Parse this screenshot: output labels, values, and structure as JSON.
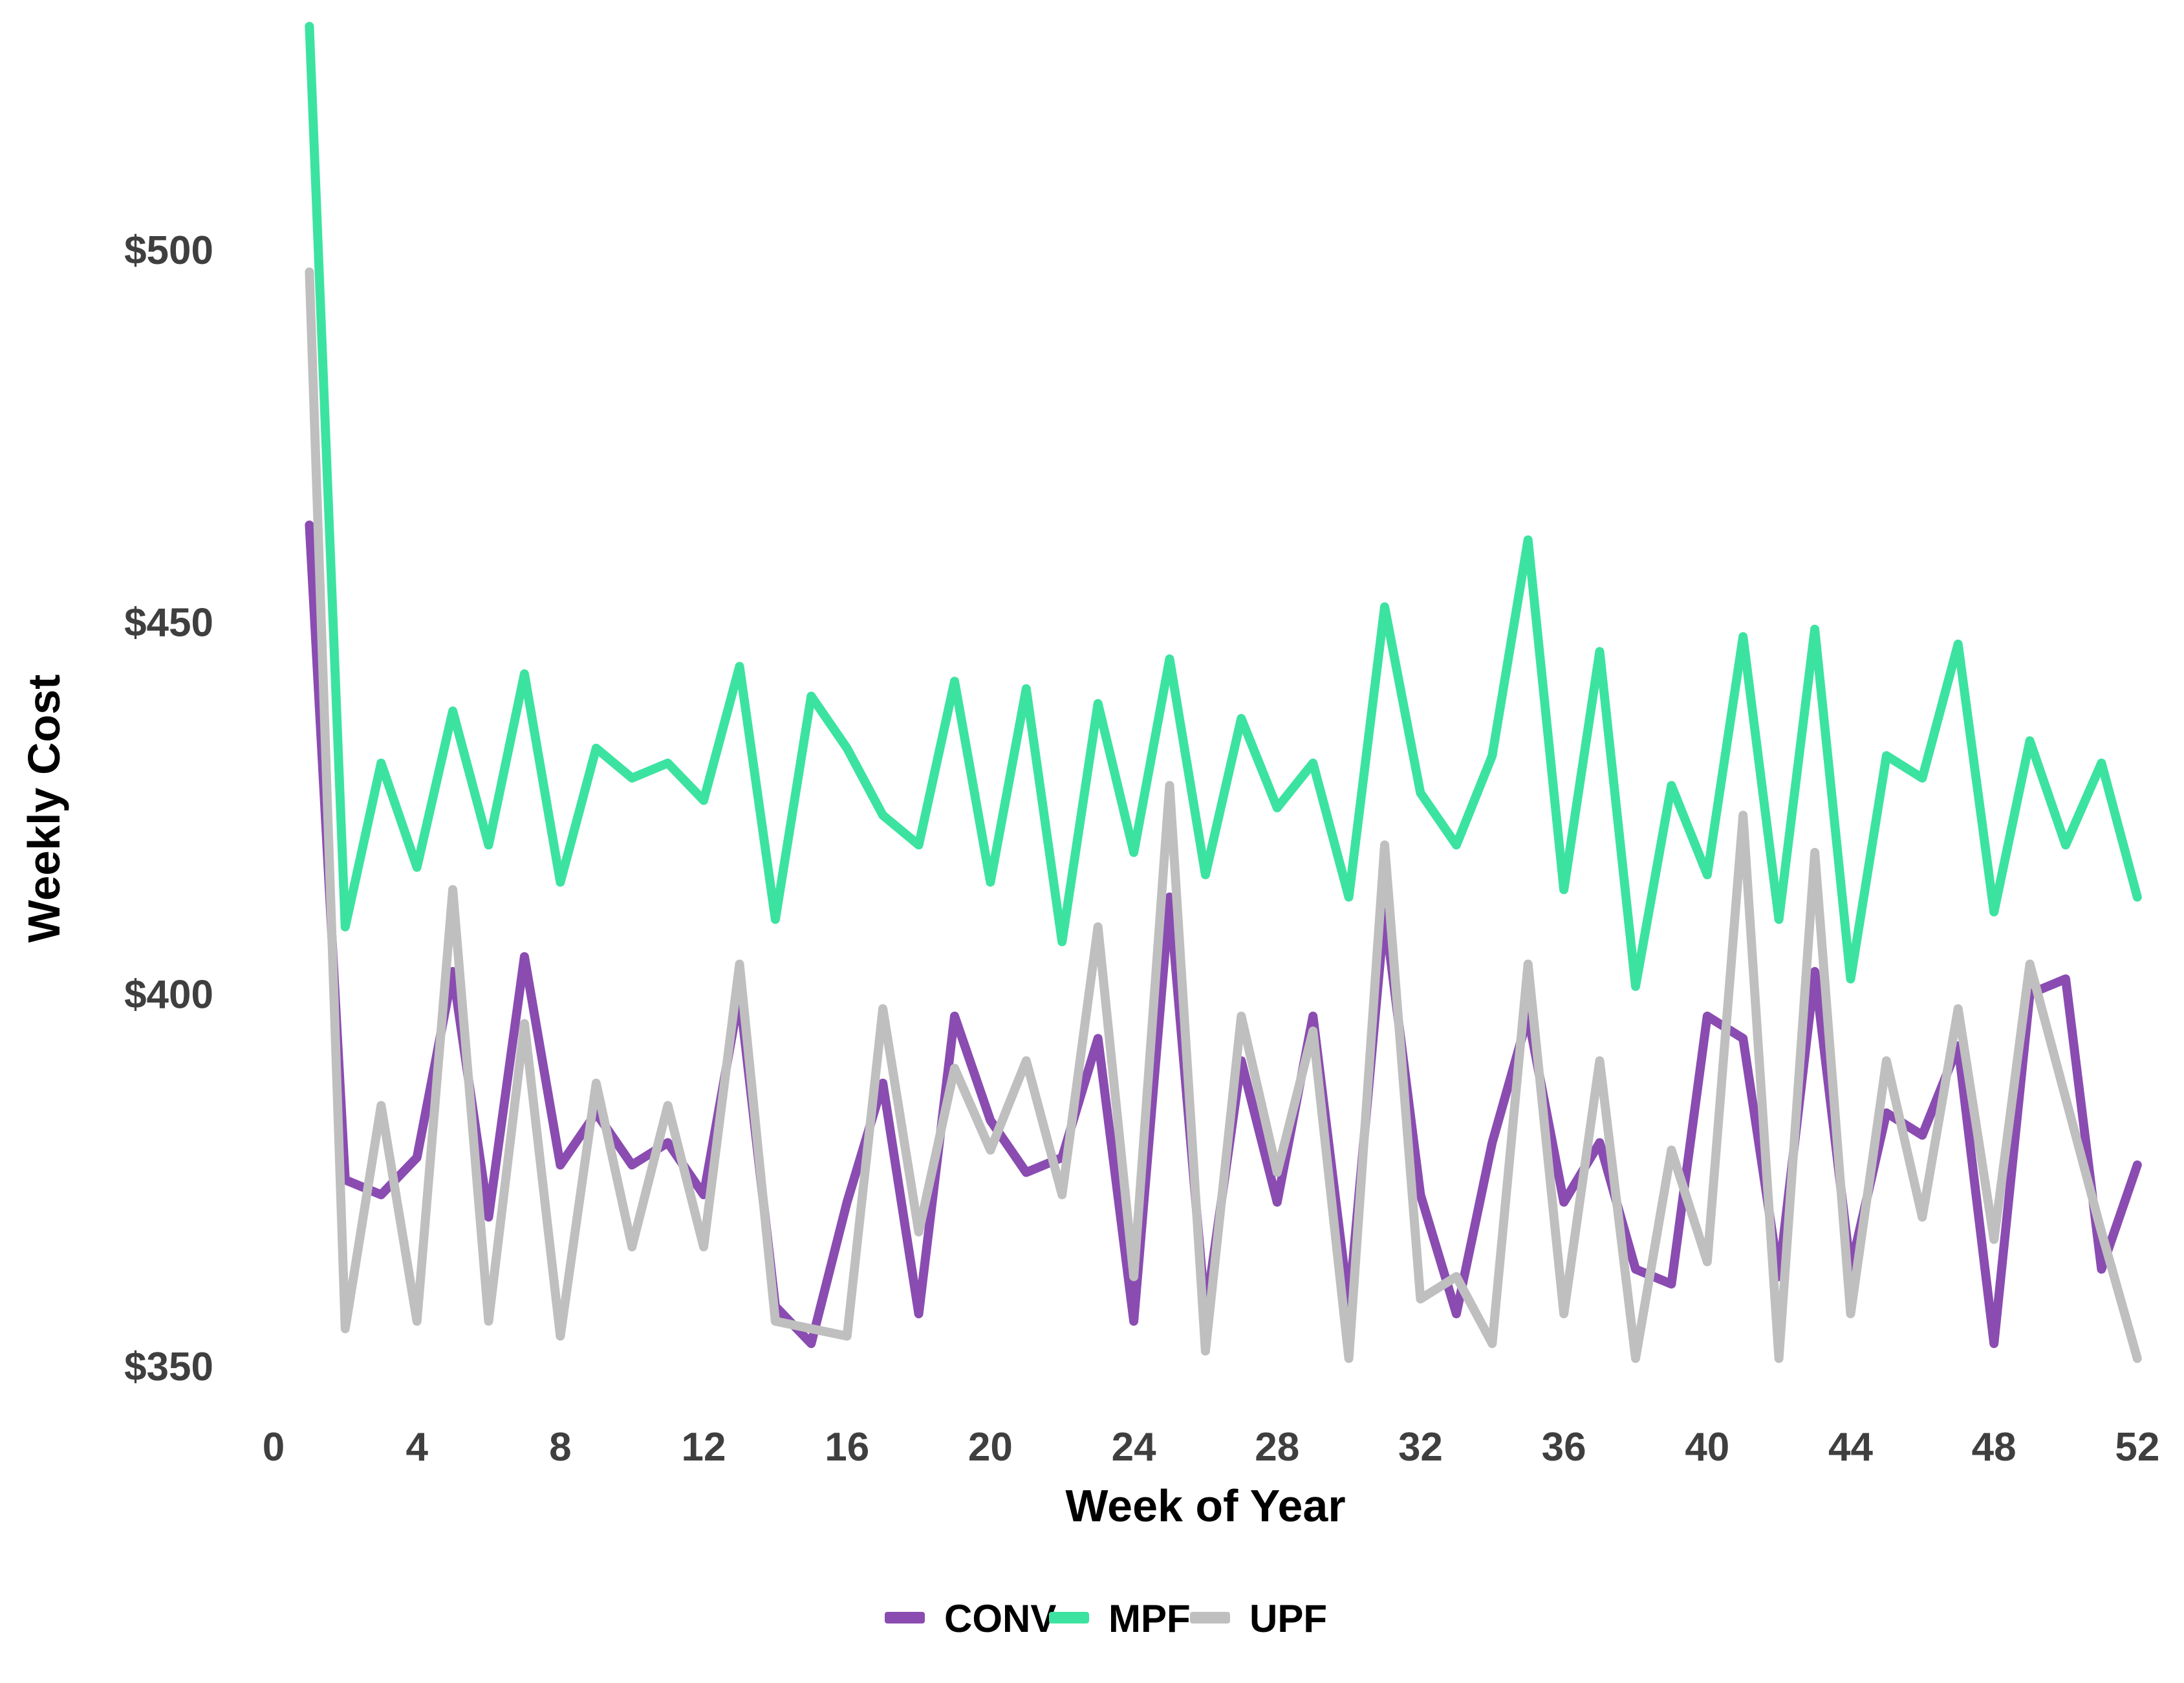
{
  "page": {
    "background": "#ffffff"
  },
  "axes": {
    "x_title": "Week of Year",
    "y_title": "Weekly Cost",
    "y_tick_labels": [
      "$350",
      "$400",
      "$450",
      "$500"
    ],
    "x_tick_labels": [
      "0",
      "4",
      "8",
      "12",
      "16",
      "20",
      "24",
      "28",
      "32",
      "36",
      "40",
      "44",
      "48",
      "52"
    ]
  },
  "legend": {
    "items": [
      {
        "label": "CONV",
        "color": "#8a4cb1"
      },
      {
        "label": "MPF",
        "color": "#3ce3a0"
      },
      {
        "label": "UPF",
        "color": "#bfbfbf"
      }
    ]
  },
  "chart_data": {
    "type": "line",
    "title": "",
    "xlabel": "Week of Year",
    "ylabel": "Weekly Cost",
    "grid": false,
    "legend_position": "bottom-center",
    "xlim": [
      0,
      53
    ],
    "ylim": [
      345,
      535
    ],
    "x_ticks": [
      0,
      4,
      8,
      12,
      16,
      20,
      24,
      28,
      32,
      36,
      40,
      44,
      48,
      52
    ],
    "y_ticks": [
      350,
      400,
      450,
      500
    ],
    "x": [
      1,
      2,
      3,
      4,
      5,
      6,
      7,
      8,
      9,
      10,
      11,
      12,
      13,
      14,
      15,
      16,
      17,
      18,
      19,
      20,
      21,
      22,
      23,
      24,
      25,
      26,
      27,
      28,
      29,
      30,
      31,
      32,
      33,
      34,
      35,
      36,
      37,
      38,
      39,
      40,
      41,
      42,
      43,
      44,
      45,
      46,
      47,
      48,
      49,
      50,
      51,
      52
    ],
    "series": [
      {
        "name": "CONV",
        "color": "#8a4cb1",
        "values": [
          463,
          375,
          373,
          378,
          403,
          370,
          405,
          377,
          384,
          377,
          380,
          373,
          400,
          358,
          353,
          372,
          388,
          357,
          397,
          383,
          376,
          378,
          394,
          356,
          413,
          357,
          391,
          372,
          397,
          358,
          411,
          373,
          357,
          380,
          397,
          372,
          380,
          363,
          361,
          397,
          394,
          362,
          403,
          363,
          384,
          381,
          393,
          353,
          400,
          402,
          363,
          377
        ]
      },
      {
        "name": "MPF",
        "color": "#3ce3a0",
        "values": [
          530,
          409,
          431,
          417,
          438,
          420,
          443,
          415,
          433,
          429,
          431,
          426,
          444,
          410,
          440,
          433,
          424,
          420,
          442,
          415,
          441,
          407,
          439,
          419,
          445,
          416,
          437,
          425,
          431,
          413,
          452,
          427,
          420,
          432,
          461,
          414,
          446,
          401,
          428,
          416,
          448,
          410,
          449,
          402,
          432,
          429,
          447,
          411,
          434,
          420,
          431,
          413
        ]
      },
      {
        "name": "UPF",
        "color": "#bfbfbf",
        "values": [
          497,
          355,
          385,
          356,
          414,
          356,
          396,
          354,
          388,
          366,
          385,
          366,
          404,
          356,
          355,
          354,
          398,
          368,
          390,
          379,
          391,
          373,
          409,
          362,
          428,
          352,
          397,
          376,
          395,
          351,
          420,
          359,
          362,
          353,
          404,
          357,
          391,
          351,
          379,
          364,
          424,
          351,
          419,
          357,
          391,
          370,
          398,
          367,
          404,
          386,
          368,
          351
        ]
      }
    ]
  }
}
